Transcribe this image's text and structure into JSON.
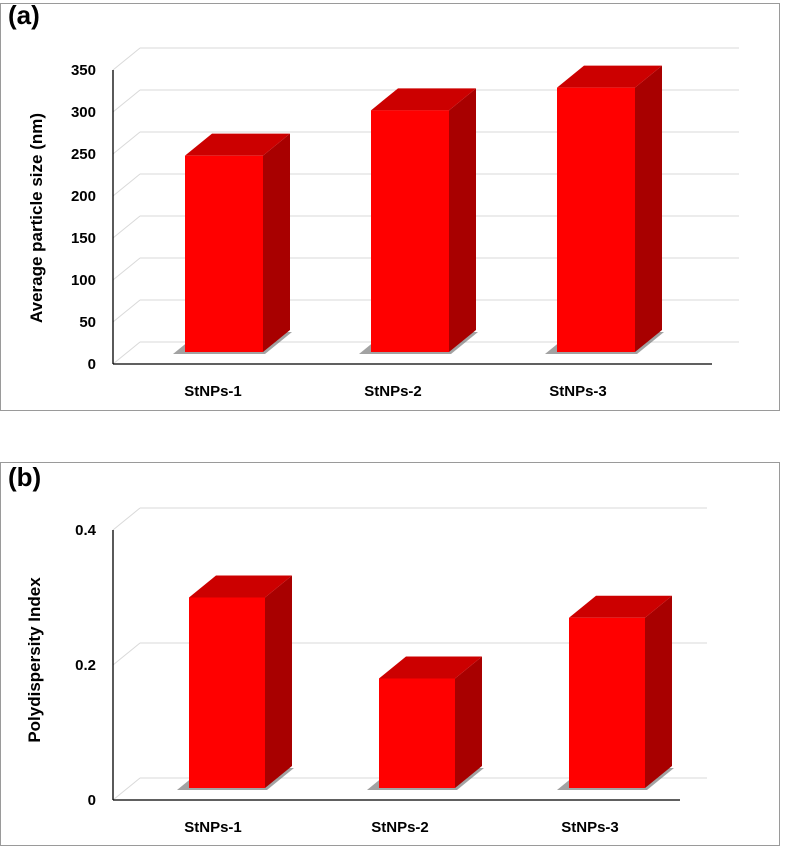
{
  "chart_data": [
    {
      "type": "bar",
      "panel_label": "(a)",
      "categories": [
        "StNPs-1",
        "StNPs-2",
        "StNPs-3"
      ],
      "values": [
        248,
        302,
        329
      ],
      "ylabel": "Average particle size (nm)",
      "xlabel": "",
      "ylim": [
        0,
        350
      ],
      "yticks": [
        "0",
        "50",
        "100",
        "150",
        "200",
        "250",
        "300",
        "350"
      ],
      "ytick_values": [
        0,
        50,
        100,
        150,
        200,
        250,
        300,
        350
      ],
      "bar_color": "#ff0000",
      "bar_side_color": "#a80000",
      "bar_top_color": "#cc0000",
      "grid": true
    },
    {
      "type": "bar",
      "panel_label": "(b)",
      "categories": [
        "StNPs-1",
        "StNPs-2",
        "StNPs-3"
      ],
      "values": [
        0.3,
        0.18,
        0.27
      ],
      "ylabel": "Polydispersity Index",
      "xlabel": "",
      "ylim": [
        0,
        0.4
      ],
      "yticks": [
        "0",
        "0.2",
        "0.4"
      ],
      "ytick_values": [
        0,
        0.2,
        0.4
      ],
      "bar_color": "#ff0000",
      "bar_side_color": "#a80000",
      "bar_top_color": "#cc0000",
      "grid": true
    }
  ]
}
